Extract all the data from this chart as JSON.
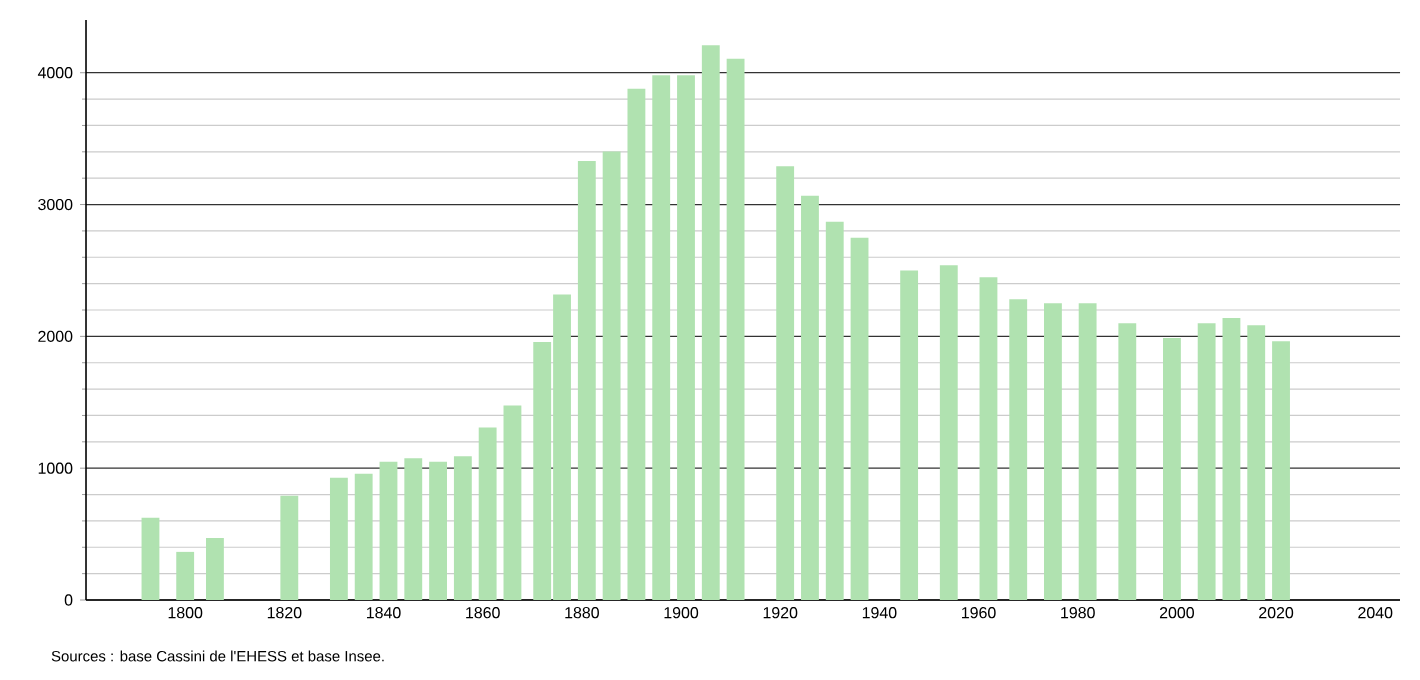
{
  "chart_data": {
    "type": "bar",
    "x": [
      1793,
      1800,
      1806,
      1821,
      1831,
      1836,
      1841,
      1846,
      1851,
      1856,
      1861,
      1866,
      1872,
      1876,
      1881,
      1886,
      1891,
      1896,
      1901,
      1906,
      1911,
      1921,
      1926,
      1931,
      1936,
      1946,
      1954,
      1962,
      1968,
      1975,
      1982,
      1990,
      1999,
      2006,
      2011,
      2016,
      2021
    ],
    "values": [
      624,
      365,
      471,
      791,
      928,
      958,
      1049,
      1075,
      1049,
      1090,
      1308,
      1475,
      1957,
      2317,
      3331,
      3402,
      3878,
      3980,
      3980,
      4208,
      4106,
      3290,
      3067,
      2870,
      2748,
      2499,
      2540,
      2449,
      2281,
      2251,
      2251,
      2099,
      1988,
      2099,
      2140,
      2084,
      1962
    ],
    "color": "#b0e2b0",
    "xlim": [
      1780,
      2045
    ],
    "xticks": [
      1800,
      1820,
      1840,
      1860,
      1880,
      1900,
      1920,
      1940,
      1960,
      1980,
      2000,
      2020,
      2040
    ],
    "ylim": [
      0,
      4400
    ],
    "yticks": [
      0,
      1000,
      2000,
      3000,
      4000
    ],
    "grid": "y",
    "annotations": [
      "Sources : base Cassini de l'EHESS et base Insee."
    ]
  }
}
